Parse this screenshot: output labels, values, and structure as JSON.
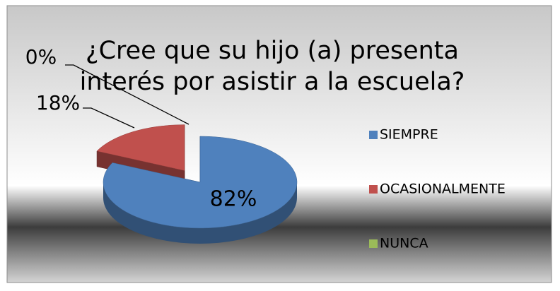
{
  "chart_data": {
    "type": "pie",
    "title": "¿Cree que su hijo (a) presenta interés por asistir a la escuela?",
    "categories": [
      "SIEMPRE",
      "OCASIONALMENTE",
      "NUNCA"
    ],
    "values": [
      82,
      18,
      0
    ],
    "value_labels": [
      "82%",
      "18%",
      "0%"
    ],
    "colors": [
      "#4f81bd",
      "#c0504d",
      "#9bbb59"
    ],
    "legend": "right"
  }
}
